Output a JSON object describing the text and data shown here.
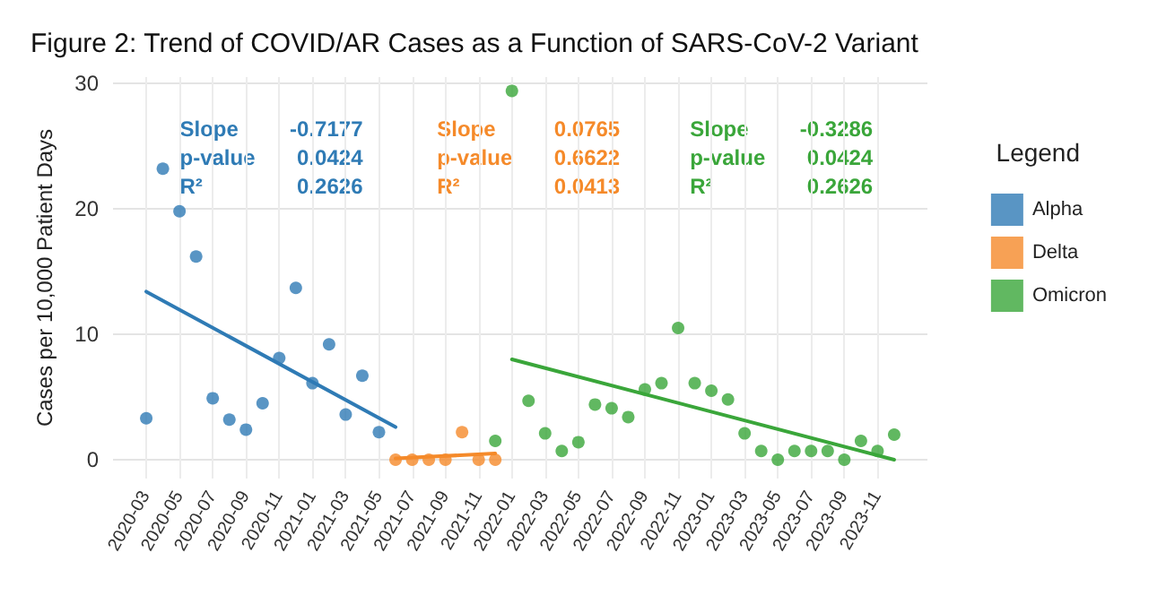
{
  "chart_data": {
    "type": "scatter",
    "title": "Figure 2: Trend of COVID/AR Cases as a Function of SARS-CoV-2 Variant",
    "ylabel": "Cases per 10,000 Patient Days",
    "legend_title": "Legend",
    "legend": "right",
    "grid": true,
    "marker": "circle",
    "xlim": [
      "2020-01",
      "2024-02"
    ],
    "ylim": [
      -1.5,
      30.5
    ],
    "yticks": [
      0,
      10,
      20,
      30
    ],
    "xticks": [
      "2020-03",
      "2020-05",
      "2020-07",
      "2020-09",
      "2020-11",
      "2021-01",
      "2021-03",
      "2021-05",
      "2021-07",
      "2021-09",
      "2021-11",
      "2022-01",
      "2022-03",
      "2022-05",
      "2022-07",
      "2022-09",
      "2022-11",
      "2023-01",
      "2023-03",
      "2023-05",
      "2023-07",
      "2023-09",
      "2023-11"
    ],
    "annotations": [
      "Slope -0.7177\np-value 0.0424\nR² 0.2626",
      "Slope 0.0765\np-value 0.6622\nR² 0.0413",
      "Slope -0.3286\np-value 0.0424\nR² 0.2626"
    ],
    "series": [
      {
        "name": "Alpha",
        "color": "#2f7bb5",
        "x": [
          "2020-03",
          "2020-04",
          "2020-05",
          "2020-06",
          "2020-07",
          "2020-08",
          "2020-09",
          "2020-10",
          "2020-11",
          "2020-12",
          "2021-01",
          "2021-02",
          "2021-03",
          "2021-04",
          "2021-05"
        ],
        "values": [
          3.3,
          23.2,
          19.8,
          16.2,
          4.9,
          3.2,
          2.4,
          4.5,
          8.1,
          13.7,
          6.1,
          9.2,
          3.6,
          6.7,
          2.2
        ]
      },
      {
        "name": "Delta",
        "color": "#f58a2a",
        "x": [
          "2021-06",
          "2021-07",
          "2021-08",
          "2021-09",
          "2021-10",
          "2021-11",
          "2021-12"
        ],
        "values": [
          0,
          0,
          0,
          0,
          2.2,
          0,
          0
        ]
      },
      {
        "name": "Omicron",
        "color": "#3aa63a",
        "x": [
          "2021-12",
          "2022-01",
          "2022-02",
          "2022-03",
          "2022-04",
          "2022-05",
          "2022-06",
          "2022-07",
          "2022-08",
          "2022-09",
          "2022-10",
          "2022-11",
          "2022-12",
          "2023-01",
          "2023-02",
          "2023-03",
          "2023-04",
          "2023-05",
          "2023-06",
          "2023-07",
          "2023-08",
          "2023-09",
          "2023-10",
          "2023-11",
          "2023-12"
        ],
        "values": [
          1.5,
          29.4,
          4.7,
          2.1,
          0.7,
          1.4,
          4.4,
          4.1,
          3.4,
          5.6,
          6.1,
          10.5,
          6.1,
          5.5,
          4.8,
          2.1,
          0.7,
          0,
          0.7,
          0.7,
          0.7,
          0,
          1.5,
          0.7,
          2.0
        ]
      },
      {
        "type": "line",
        "color": "#2f7bb5",
        "marker": "none",
        "x": [
          "2020-03",
          "2021-06"
        ],
        "values": [
          13.4,
          2.6
        ]
      },
      {
        "type": "line",
        "color": "#f58a2a",
        "marker": "none",
        "x": [
          "2021-06",
          "2021-12"
        ],
        "values": [
          0.1,
          0.5
        ]
      },
      {
        "type": "line",
        "color": "#3aa63a",
        "marker": "none",
        "x": [
          "2022-01",
          "2023-12"
        ],
        "values": [
          8.0,
          0.0
        ]
      }
    ]
  }
}
